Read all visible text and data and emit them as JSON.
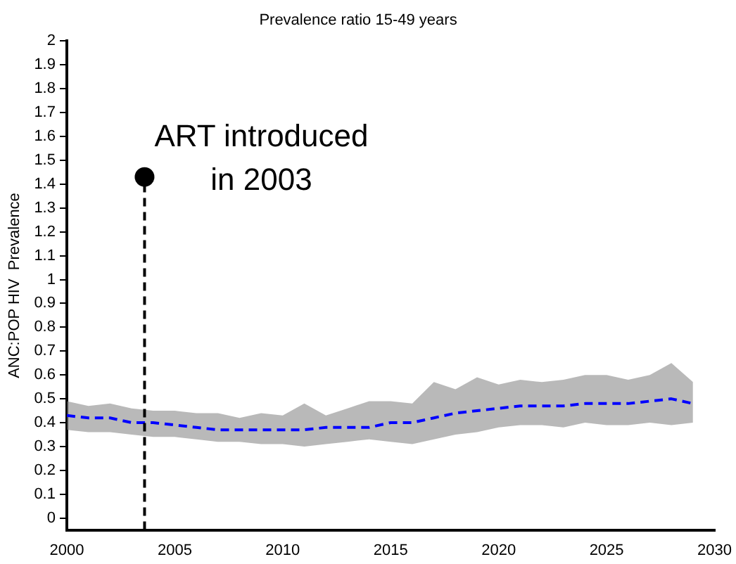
{
  "chart_data": {
    "type": "line",
    "title": "Prevalence ratio 15-49 years",
    "ylabel": "ANC:POP HIV  Prevalence",
    "x": [
      2000,
      2001,
      2002,
      2003,
      2004,
      2005,
      2006,
      2007,
      2008,
      2009,
      2010,
      2011,
      2012,
      2013,
      2014,
      2015,
      2016,
      2017,
      2018,
      2019,
      2020,
      2021,
      2022,
      2023,
      2024,
      2025,
      2026,
      2027,
      2028,
      2029
    ],
    "series": [
      {
        "color": "#0000ff",
        "line_style": "dashed",
        "values": [
          0.43,
          0.42,
          0.42,
          0.4,
          0.4,
          0.39,
          0.38,
          0.37,
          0.37,
          0.37,
          0.37,
          0.37,
          0.38,
          0.38,
          0.38,
          0.4,
          0.4,
          0.42,
          0.44,
          0.45,
          0.46,
          0.47,
          0.47,
          0.47,
          0.48,
          0.48,
          0.48,
          0.49,
          0.5,
          0.48
        ],
        "lower": [
          0.37,
          0.36,
          0.36,
          0.35,
          0.34,
          0.34,
          0.33,
          0.32,
          0.32,
          0.31,
          0.31,
          0.3,
          0.31,
          0.32,
          0.33,
          0.32,
          0.31,
          0.33,
          0.35,
          0.36,
          0.38,
          0.39,
          0.39,
          0.38,
          0.4,
          0.39,
          0.39,
          0.4,
          0.39,
          0.4
        ],
        "upper": [
          0.49,
          0.47,
          0.48,
          0.46,
          0.45,
          0.45,
          0.44,
          0.44,
          0.42,
          0.44,
          0.43,
          0.48,
          0.43,
          0.46,
          0.49,
          0.49,
          0.48,
          0.57,
          0.54,
          0.59,
          0.56,
          0.58,
          0.57,
          0.58,
          0.6,
          0.6,
          0.58,
          0.6,
          0.65,
          0.57
        ]
      }
    ],
    "xlim": [
      2000,
      2030
    ],
    "xticks": [
      2000,
      2005,
      2010,
      2015,
      2020,
      2025,
      2030
    ],
    "ylim": [
      -0.05,
      2
    ],
    "yticks": [
      0,
      0.1,
      0.2,
      0.3,
      0.4,
      0.5,
      0.6,
      0.7,
      0.8,
      0.9,
      1,
      1.1,
      1.2,
      1.3,
      1.4,
      1.5,
      1.6,
      1.7,
      1.8,
      1.9,
      2
    ],
    "grid": false,
    "legend": false,
    "marker": "none",
    "ref_lines": [
      {
        "axis": "x",
        "value": 2003.6,
        "line_style": "dashed",
        "color": "#000000"
      }
    ],
    "annotations": [
      {
        "text": "ART introduced\nin 2003",
        "x": 2003.6,
        "y": 1.43
      }
    ]
  }
}
